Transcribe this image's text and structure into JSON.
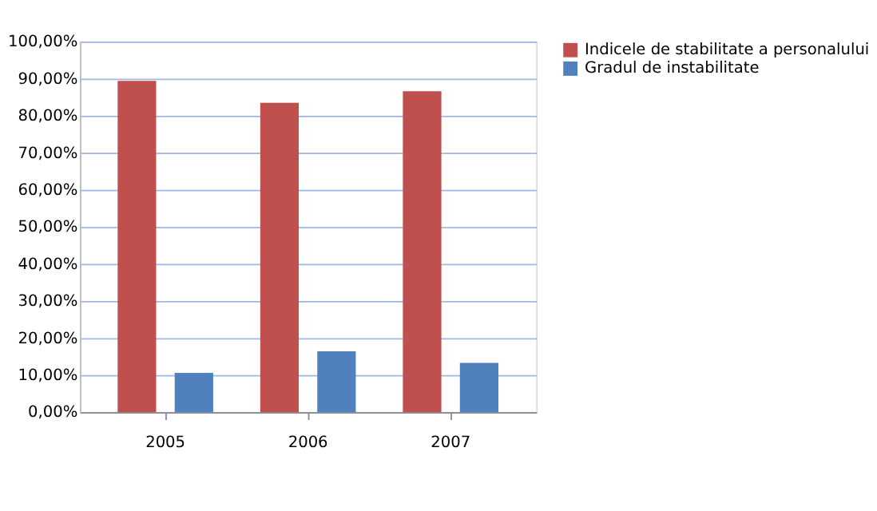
{
  "chart_data": {
    "type": "bar",
    "categories": [
      "2005",
      "2006",
      "2007"
    ],
    "series": [
      {
        "name": "Indicele de stabilitate a personalului",
        "color": "#c0504d",
        "values": [
          89.4,
          83.5,
          86.6
        ]
      },
      {
        "name": "Gradul de instabilitate",
        "color": "#4f81bd",
        "values": [
          10.6,
          16.4,
          13.3
        ]
      }
    ],
    "ylim": [
      0,
      100
    ],
    "yticks": [
      {
        "value": 0,
        "label": "0,00%"
      },
      {
        "value": 10,
        "label": "10,00%"
      },
      {
        "value": 20,
        "label": "20,00%"
      },
      {
        "value": 30,
        "label": "30,00%"
      },
      {
        "value": 40,
        "label": "40,00%"
      },
      {
        "value": 50,
        "label": "50,00%"
      },
      {
        "value": 60,
        "label": "60,00%"
      },
      {
        "value": 70,
        "label": "70,00%"
      },
      {
        "value": 80,
        "label": "80,00%"
      },
      {
        "value": 90,
        "label": "90,00%"
      },
      {
        "value": 100,
        "label": "100,00%"
      }
    ],
    "grid": "y",
    "legend": "right"
  }
}
